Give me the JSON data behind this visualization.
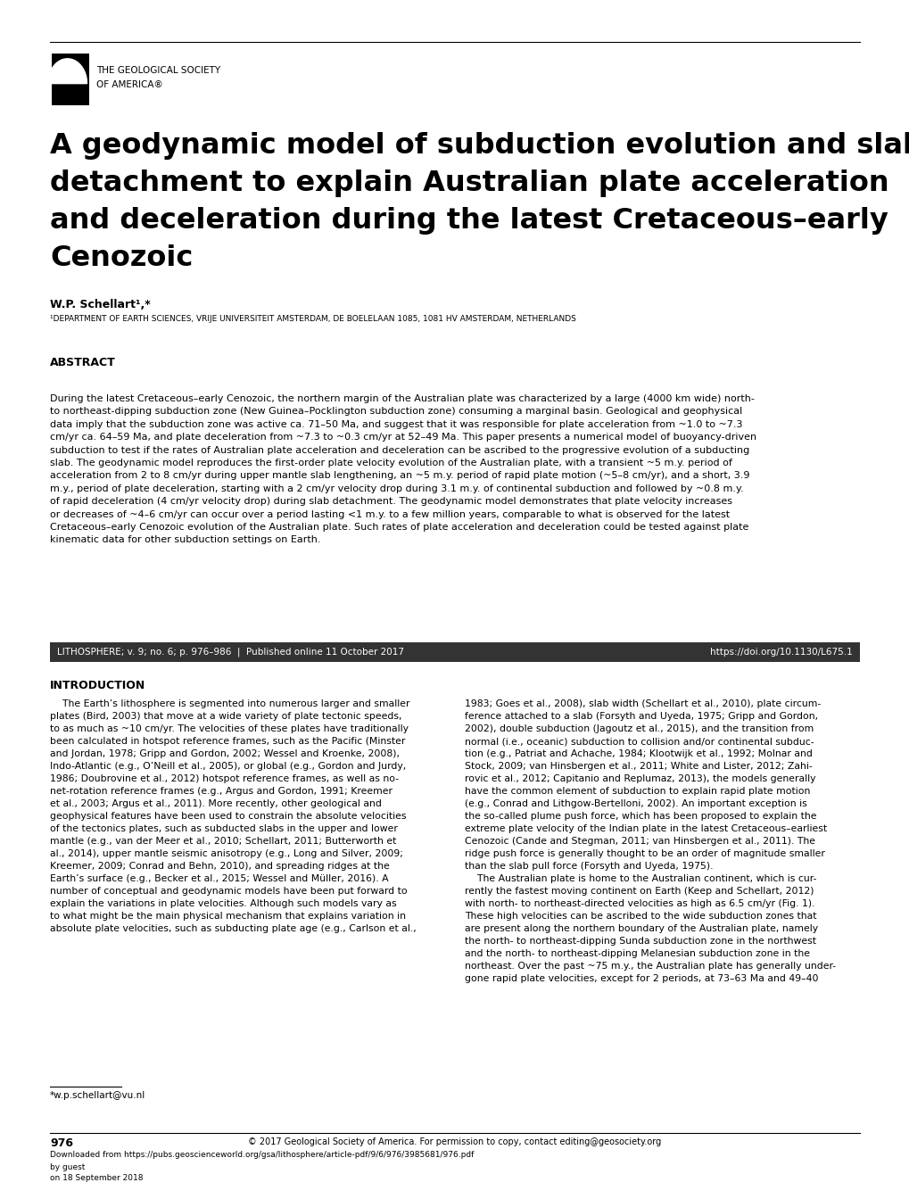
{
  "logo_text_line1": "THE GEOLOGICAL SOCIETY",
  "logo_text_line2": "OF AMERICA®",
  "title_line1": "A geodynamic model of subduction evolution and slab",
  "title_line2": "detachment to explain Australian plate acceleration",
  "title_line3": "and deceleration during the latest Cretaceous–early",
  "title_line4": "Cenozoic",
  "author": "W.P. Schellart¹,*",
  "affiliation": "¹DEPARTMENT OF EARTH SCIENCES, VRIJE UNIVERSITEIT AMSTERDAM, DE BOELELAAN 1085, 1081 HV AMSTERDAM, NETHERLANDS",
  "abstract_header": "ABSTRACT",
  "abstract_text": "During the latest Cretaceous–early Cenozoic, the northern margin of the Australian plate was characterized by a large (4000 km wide) north-\nto northeast-dipping subduction zone (New Guinea–Pocklington subduction zone) consuming a marginal basin. Geological and geophysical\ndata imply that the subduction zone was active ca. 71–50 Ma, and suggest that it was responsible for plate acceleration from ~1.0 to ~7.3\ncm/yr ca. 64–59 Ma, and plate deceleration from ~7.3 to ~0.3 cm/yr at 52–49 Ma. This paper presents a numerical model of buoyancy-driven\nsubduction to test if the rates of Australian plate acceleration and deceleration can be ascribed to the progressive evolution of a subducting\nslab. The geodynamic model reproduces the first-order plate velocity evolution of the Australian plate, with a transient ~5 m.y. period of\nacceleration from 2 to 8 cm/yr during upper mantle slab lengthening, an ~5 m.y. period of rapid plate motion (~5–8 cm/yr), and a short, 3.9\nm.y., period of plate deceleration, starting with a 2 cm/yr velocity drop during 3.1 m.y. of continental subduction and followed by ~0.8 m.y.\nof rapid deceleration (4 cm/yr velocity drop) during slab detachment. The geodynamic model demonstrates that plate velocity increases\nor decreases of ~4–6 cm/yr can occur over a period lasting <1 m.y. to a few million years, comparable to what is observed for the latest\nCretaceous–early Cenozoic evolution of the Australian plate. Such rates of plate acceleration and deceleration could be tested against plate\nkinematic data for other subduction settings on Earth.",
  "journal_bar_text": "LITHOSPHERE; v. 9; no. 6; p. 976–986  |  Published online 11 October 2017",
  "journal_bar_doi": "https://doi.org/10.1130/L675.1",
  "intro_header": "INTRODUCTION",
  "intro_col1_indent": "    The Earth’s lithosphere is segmented into numerous larger and smaller\nplates (Bird, 2003) that move at a wide variety of plate tectonic speeds,\nto as much as ~10 cm/yr. The velocities of these plates have traditionally\nbeen calculated in hotspot reference frames, such as the Pacific (Minster\nand Jordan, 1978; Gripp and Gordon, 2002; Wessel and Kroenke, 2008),\nIndo-Atlantic (e.g., O’Neill et al., 2005), or global (e.g., Gordon and Jurdy,\n1986; Doubrovine et al., 2012) hotspot reference frames, as well as no-\nnet-rotation reference frames (e.g., Argus and Gordon, 1991; Kreemer\net al., 2003; Argus et al., 2011). More recently, other geological and\ngeophysical features have been used to constrain the absolute velocities\nof the tectonics plates, such as subducted slabs in the upper and lower\nmantle (e.g., van der Meer et al., 2010; Schellart, 2011; Butterworth et\nal., 2014), upper mantle seismic anisotropy (e.g., Long and Silver, 2009;\nKreemer, 2009; Conrad and Behn, 2010), and spreading ridges at the\nEarth’s surface (e.g., Becker et al., 2015; Wessel and Müller, 2016). A\nnumber of conceptual and geodynamic models have been put forward to\nexplain the variations in plate velocities. Although such models vary as\nto what might be the main physical mechanism that explains variation in\nabsolute plate velocities, such as subducting plate age (e.g., Carlson et al.,",
  "intro_col2": "1983; Goes et al., 2008), slab width (Schellart et al., 2010), plate circum-\nference attached to a slab (Forsyth and Uyeda, 1975; Gripp and Gordon,\n2002), double subduction (Jagoutz et al., 2015), and the transition from\nnormal (i.e., oceanic) subduction to collision and/or continental subduc-\ntion (e.g., Patriat and Achache, 1984; Klootwijk et al., 1992; Molnar and\nStock, 2009; van Hinsbergen et al., 2011; White and Lister, 2012; Zahi-\nrovic et al., 2012; Capitanio and Replumaz, 2013), the models generally\nhave the common element of subduction to explain rapid plate motion\n(e.g., Conrad and Lithgow-Bertelloni, 2002). An important exception is\nthe so-called plume push force, which has been proposed to explain the\nextreme plate velocity of the Indian plate in the latest Cretaceous–earliest\nCenozoic (Cande and Stegman, 2011; van Hinsbergen et al., 2011). The\nridge push force is generally thought to be an order of magnitude smaller\nthan the slab pull force (Forsyth and Uyeda, 1975).\n    The Australian plate is home to the Australian continent, which is cur-\nrently the fastest moving continent on Earth (Keep and Schellart, 2012)\nwith north- to northeast-directed velocities as high as 6.5 cm/yr (Fig. 1).\nThese high velocities can be ascribed to the wide subduction zones that\nare present along the northern boundary of the Australian plate, namely\nthe north- to northeast-dipping Sunda subduction zone in the northwest\nand the north- to northeast-dipping Melanesian subduction zone in the\nnortheast. Over the past ~75 m.y., the Australian plate has generally under-\ngone rapid plate velocities, except for 2 periods, at 73–63 Ma and 49–40",
  "footnote_email": "*w.p.schellart@vu.nl",
  "page_number": "976",
  "copyright_text": "© 2017 Geological Society of America. For permission to copy, contact editing@geosociety.org",
  "download_line1": "Downloaded from https://pubs.geoscienceworld.org/gsa/lithosphere/article-pdf/9/6/976/3985681/976.pdf",
  "download_line2": "by guest",
  "download_line3": "on 18 September 2018"
}
